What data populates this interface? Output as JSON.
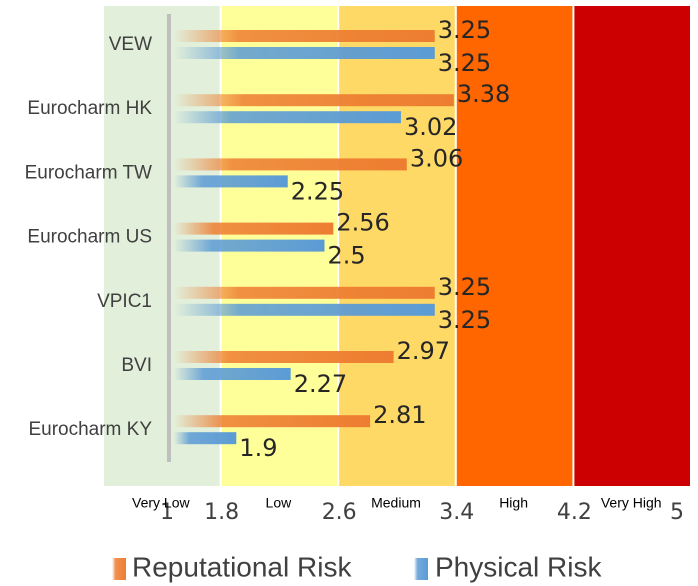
{
  "chart_data": {
    "type": "bar",
    "orientation": "horizontal",
    "categories": [
      "VEW",
      "Eurocharm HK",
      "Eurocharm TW",
      "Eurocharm US",
      "VPIC1",
      "BVI",
      "Eurocharm KY"
    ],
    "series": [
      {
        "name": "Reputational Risk",
        "color": "#ED7D31",
        "values": [
          3.25,
          3.38,
          3.06,
          2.56,
          3.25,
          2.97,
          2.81
        ]
      },
      {
        "name": "Physical Risk",
        "color": "#5B9BD5",
        "values": [
          3.25,
          3.02,
          2.25,
          2.5,
          3.25,
          2.27,
          1.9
        ]
      }
    ],
    "xlim": [
      1,
      5
    ],
    "x_ticks": [
      "1",
      "1.8",
      "2.6",
      "3.4",
      "4.2",
      "5"
    ],
    "risk_bands": [
      {
        "label": "Very Low",
        "from": 1.0,
        "to": 1.8,
        "color": "#E2EFDA"
      },
      {
        "label": "Low",
        "from": 1.8,
        "to": 2.6,
        "color": "#FFFF99"
      },
      {
        "label": "Medium",
        "from": 2.6,
        "to": 3.4,
        "color": "#FFD966"
      },
      {
        "label": "High",
        "from": 3.4,
        "to": 4.2,
        "color": "#FF6600"
      },
      {
        "label": "Very High",
        "from": 4.2,
        "to": 5.0,
        "color": "#CC0000"
      }
    ],
    "legend_position": "bottom",
    "grid": false
  }
}
